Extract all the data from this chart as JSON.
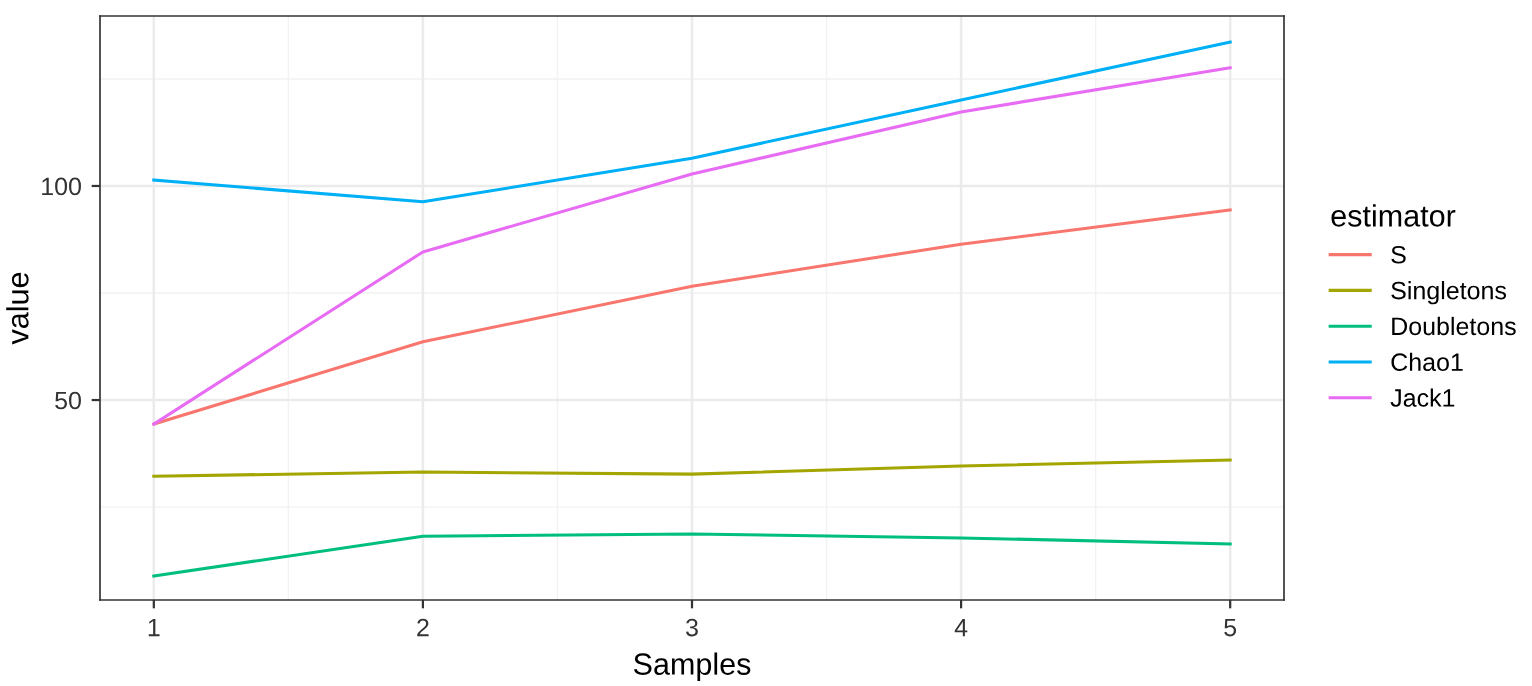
{
  "chart_data": {
    "type": "line",
    "xlabel": "Samples",
    "ylabel": "value",
    "legend_title": "estimator",
    "x": [
      1,
      2,
      3,
      4,
      5
    ],
    "series": [
      {
        "name": "S",
        "color": "#f8766d",
        "values": [
          44.4,
          63.6,
          76.6,
          86.4,
          94.4
        ]
      },
      {
        "name": "Singletons",
        "color": "#a3a500",
        "values": [
          32.2,
          33.2,
          32.7,
          34.6,
          36.0
        ]
      },
      {
        "name": "Doubletons",
        "color": "#00bf7d",
        "values": [
          8.9,
          18.2,
          18.7,
          17.8,
          16.4
        ]
      },
      {
        "name": "Chao1",
        "color": "#00b0f6",
        "values": [
          101.4,
          96.3,
          106.5,
          120.1,
          133.6
        ]
      },
      {
        "name": "Jack1",
        "color": "#e76bf3",
        "values": [
          44.4,
          84.6,
          102.8,
          117.3,
          127.6
        ]
      }
    ],
    "xlim": [
      0.8,
      5.2
    ],
    "ylim": [
      3.3,
      139.7
    ],
    "xticks": [
      1,
      2,
      3,
      4,
      5
    ],
    "yticks": [
      50,
      100
    ],
    "grid": true,
    "legend": "right",
    "marker": "none",
    "line_style": "solid"
  }
}
